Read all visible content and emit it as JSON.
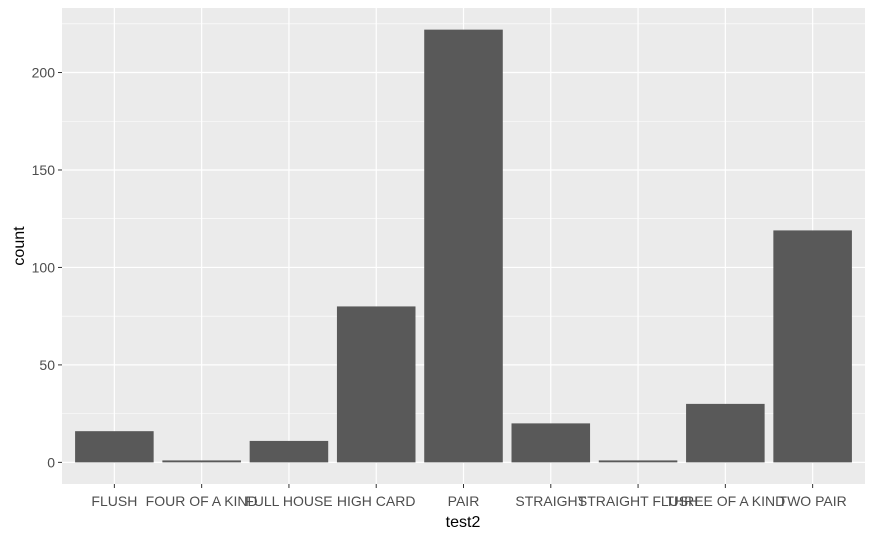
{
  "chart_data": {
    "type": "bar",
    "categories": [
      "FLUSH",
      "FOUR OF A KIND",
      "FULL HOUSE",
      "HIGH CARD",
      "PAIR",
      "STRAIGHT",
      "STRAIGHT FLUSH",
      "THREE OF A KIND",
      "TWO PAIR"
    ],
    "values": [
      16,
      1,
      11,
      80,
      222,
      20,
      1,
      30,
      119
    ],
    "xlabel": "test2",
    "ylabel": "count",
    "yticks": [
      0,
      50,
      100,
      150,
      200
    ],
    "ylim": [
      -11.1,
      233.1
    ],
    "grid": true,
    "colors": {
      "panel": "#ebebeb",
      "grid": "#ffffff",
      "bar": "#595959"
    }
  }
}
